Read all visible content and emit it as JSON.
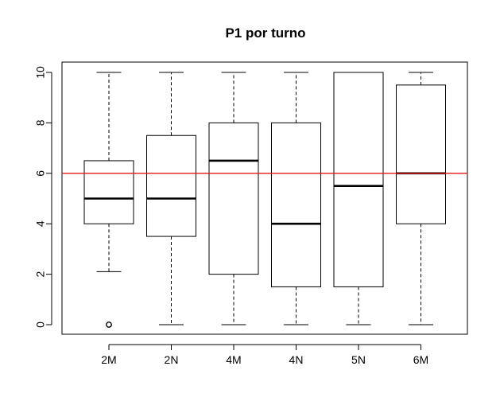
{
  "chart_data": {
    "type": "boxplot",
    "title": "P1 por turno",
    "xlabel": "",
    "ylabel": "",
    "ylim": [
      -0.4,
      10.4
    ],
    "yticks": [
      "0",
      "2",
      "4",
      "6",
      "8",
      "10"
    ],
    "reference_line": {
      "y": 6,
      "color": "#e31a1c"
    },
    "categories": [
      "2M",
      "2N",
      "4M",
      "4N",
      "5N",
      "6M"
    ],
    "boxes": [
      {
        "label": "2M",
        "whisker_low": 2.1,
        "q1": 4.0,
        "median": 5.0,
        "q3": 6.5,
        "whisker_high": 10.0,
        "outliers": [
          0
        ]
      },
      {
        "label": "2N",
        "whisker_low": 0.0,
        "q1": 3.5,
        "median": 5.0,
        "q3": 7.5,
        "whisker_high": 10.0,
        "outliers": []
      },
      {
        "label": "4M",
        "whisker_low": 0.0,
        "q1": 2.0,
        "median": 6.5,
        "q3": 8.0,
        "whisker_high": 10.0,
        "outliers": []
      },
      {
        "label": "4N",
        "whisker_low": 0.0,
        "q1": 1.5,
        "median": 4.0,
        "q3": 8.0,
        "whisker_high": 10.0,
        "outliers": []
      },
      {
        "label": "5N",
        "whisker_low": 0.0,
        "q1": 1.5,
        "median": 5.5,
        "q3": 10.0,
        "whisker_high": 10.0,
        "outliers": []
      },
      {
        "label": "6M",
        "whisker_low": 0.0,
        "q1": 4.0,
        "median": 6.0,
        "q3": 9.5,
        "whisker_high": 10.0,
        "outliers": []
      }
    ],
    "grid": false,
    "legend": "none",
    "colors": {
      "box_stroke": "#000000",
      "box_fill": "#ffffff",
      "axis": "#000000"
    }
  }
}
